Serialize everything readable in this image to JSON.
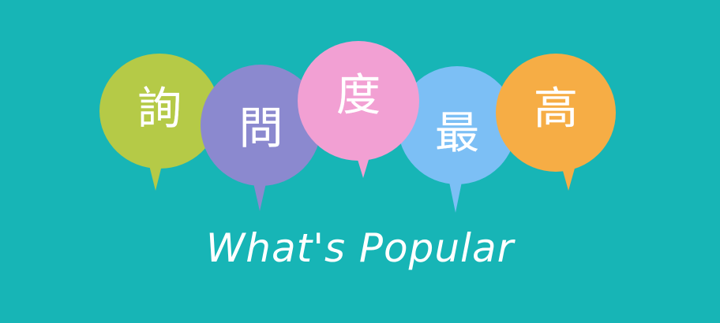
{
  "banner": {
    "background": "#17b5b6",
    "bubbles": [
      {
        "char": "詢",
        "color": "#b5ca47"
      },
      {
        "char": "問",
        "color": "#8b89cf"
      },
      {
        "char": "度",
        "color": "#f2a0d3"
      },
      {
        "char": "最",
        "color": "#7cbff5"
      },
      {
        "char": "高",
        "color": "#f6ad45"
      }
    ],
    "caption": "What's Popular"
  }
}
